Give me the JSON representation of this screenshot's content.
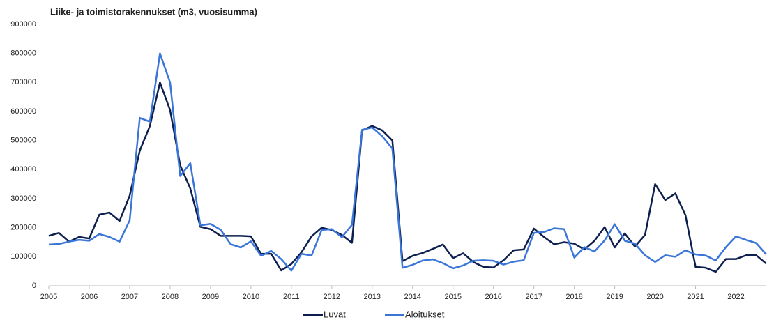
{
  "chart_data": {
    "type": "line",
    "title": "Liike- ja toimistorakennukset (m3, vuosisumma)",
    "x": [
      2005,
      2005.25,
      2005.5,
      2005.75,
      2006,
      2006.25,
      2006.5,
      2006.75,
      2007,
      2007.25,
      2007.5,
      2007.75,
      2008,
      2008.25,
      2008.5,
      2008.75,
      2009,
      2009.25,
      2009.5,
      2009.75,
      2010,
      2010.25,
      2010.5,
      2010.75,
      2011,
      2011.25,
      2011.5,
      2011.75,
      2012,
      2012.25,
      2012.5,
      2012.75,
      2013,
      2013.25,
      2013.5,
      2013.75,
      2014,
      2014.25,
      2014.5,
      2014.75,
      2015,
      2015.25,
      2015.5,
      2015.75,
      2016,
      2016.25,
      2016.5,
      2016.75,
      2017,
      2017.25,
      2017.5,
      2017.75,
      2018,
      2018.25,
      2018.5,
      2018.75,
      2019,
      2019.25,
      2019.5,
      2019.75,
      2020,
      2020.25,
      2020.5,
      2020.75,
      2021,
      2021.25,
      2021.5,
      2021.75,
      2022,
      2022.25,
      2022.5,
      2022.75
    ],
    "series": [
      {
        "name": "Luvat",
        "color": "#0d1f4f",
        "values": [
          172000,
          182000,
          152000,
          168000,
          163000,
          245000,
          252000,
          223000,
          310000,
          465000,
          550000,
          700000,
          605000,
          415000,
          335000,
          203000,
          195000,
          172000,
          172000,
          172000,
          170000,
          110000,
          110000,
          53000,
          75000,
          115000,
          170000,
          200000,
          192000,
          175000,
          148000,
          535000,
          550000,
          535000,
          500000,
          85000,
          103000,
          113000,
          127000,
          142000,
          95000,
          112000,
          82000,
          65000,
          63000,
          88000,
          122000,
          125000,
          197000,
          168000,
          143000,
          150000,
          145000,
          125000,
          155000,
          202000,
          132000,
          180000,
          135000,
          175000,
          350000,
          295000,
          318000,
          243000,
          65000,
          62000,
          48000,
          92000,
          92000,
          105000,
          105000,
          76000
        ]
      },
      {
        "name": "Aloitukset",
        "color": "#3a75d8",
        "values": [
          142000,
          144000,
          152000,
          158000,
          155000,
          178000,
          168000,
          152000,
          225000,
          578000,
          565000,
          800000,
          700000,
          378000,
          422000,
          208000,
          213000,
          193000,
          143000,
          132000,
          153000,
          103000,
          120000,
          92000,
          52000,
          110000,
          104000,
          192000,
          195000,
          167000,
          210000,
          537000,
          545000,
          515000,
          472000,
          62000,
          72000,
          87000,
          91000,
          78000,
          60000,
          70000,
          86000,
          88000,
          86000,
          73000,
          83000,
          88000,
          182000,
          185000,
          198000,
          195000,
          97000,
          133000,
          118000,
          156000,
          212000,
          155000,
          145000,
          105000,
          82000,
          105000,
          100000,
          122000,
          108000,
          104000,
          87000,
          133000,
          170000,
          158000,
          147000,
          108000
        ]
      }
    ],
    "xlim": [
      2005,
      2022.75
    ],
    "xticks": [
      2005,
      2006,
      2007,
      2008,
      2009,
      2010,
      2011,
      2012,
      2013,
      2014,
      2015,
      2016,
      2017,
      2018,
      2019,
      2020,
      2021,
      2022
    ],
    "ylim": [
      0,
      900000
    ],
    "yticks": [
      0,
      100000,
      200000,
      300000,
      400000,
      500000,
      600000,
      700000,
      800000,
      900000
    ],
    "legend": "bottom"
  }
}
